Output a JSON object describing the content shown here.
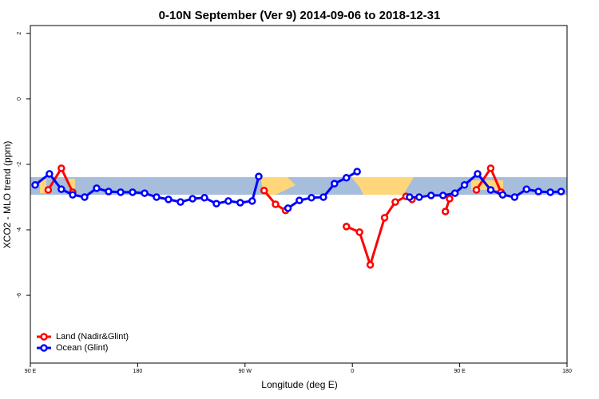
{
  "chart_data": {
    "type": "line",
    "title": "0-10N September (Ver 9)   2014-09-06 to 2018-12-31",
    "x_label": "Longitude (deg E)",
    "y_label": "XCO2 - MLO trend (ppm)",
    "xlim": [
      90,
      540
    ],
    "ylim": [
      -8.07,
      2.24
    ],
    "xticks": [
      {
        "value": 90,
        "label": "90 E"
      },
      {
        "value": 180,
        "label": "180"
      },
      {
        "value": 270,
        "label": "90 W"
      },
      {
        "value": 360,
        "label": "0"
      },
      {
        "value": 450,
        "label": "90 E"
      },
      {
        "value": 540,
        "label": "180"
      }
    ],
    "yticks": [
      2,
      0,
      -2,
      -4,
      -6
    ],
    "legend": "bottom-left",
    "series": [
      {
        "name": "Land (Nadir&Glint)",
        "color": "#ff0000",
        "x": [
          105,
          116,
          125.5,
          null,
          286,
          295.6,
          304,
          null,
          355,
          366,
          375,
          387,
          396,
          405,
          410,
          null,
          438,
          441.5,
          null,
          464,
          476,
          484.6
        ],
        "values": [
          -2.78,
          -2.12,
          -2.85,
          null,
          -2.8,
          -3.22,
          -3.41,
          null,
          -3.9,
          -4.07,
          -5.07,
          -3.63,
          -3.15,
          -2.98,
          -3.07,
          null,
          -3.44,
          -3.05,
          null,
          -2.78,
          -2.12,
          -2.85
        ]
      },
      {
        "name": "Ocean (Glint)",
        "color": "#0000ff",
        "x": [
          94,
          106,
          116,
          125.5,
          135.5,
          145.6,
          155.6,
          165.7,
          175.7,
          185.8,
          195.8,
          205.8,
          215.9,
          226,
          236,
          246,
          256,
          266,
          276,
          281.5,
          null,
          306,
          315.6,
          325.7,
          335.7,
          345,
          355,
          364,
          null,
          408,
          416,
          426,
          436,
          446,
          454,
          465,
          476,
          486,
          496,
          506,
          516,
          526,
          535
        ],
        "values": [
          -2.63,
          -2.29,
          -2.76,
          -2.93,
          -3.0,
          -2.73,
          -2.83,
          -2.85,
          -2.85,
          -2.88,
          -3.0,
          -3.07,
          -3.15,
          -3.05,
          -3.02,
          -3.2,
          -3.12,
          -3.17,
          -3.12,
          -2.37,
          null,
          -3.34,
          -3.1,
          -3.02,
          -3.0,
          -2.59,
          -2.41,
          -2.22,
          null,
          -3.0,
          -3.0,
          -2.95,
          -2.95,
          -2.88,
          -2.63,
          -2.29,
          -2.78,
          -2.93,
          -3.0,
          -2.76,
          -2.83,
          -2.85,
          -2.83
        ]
      }
    ]
  }
}
